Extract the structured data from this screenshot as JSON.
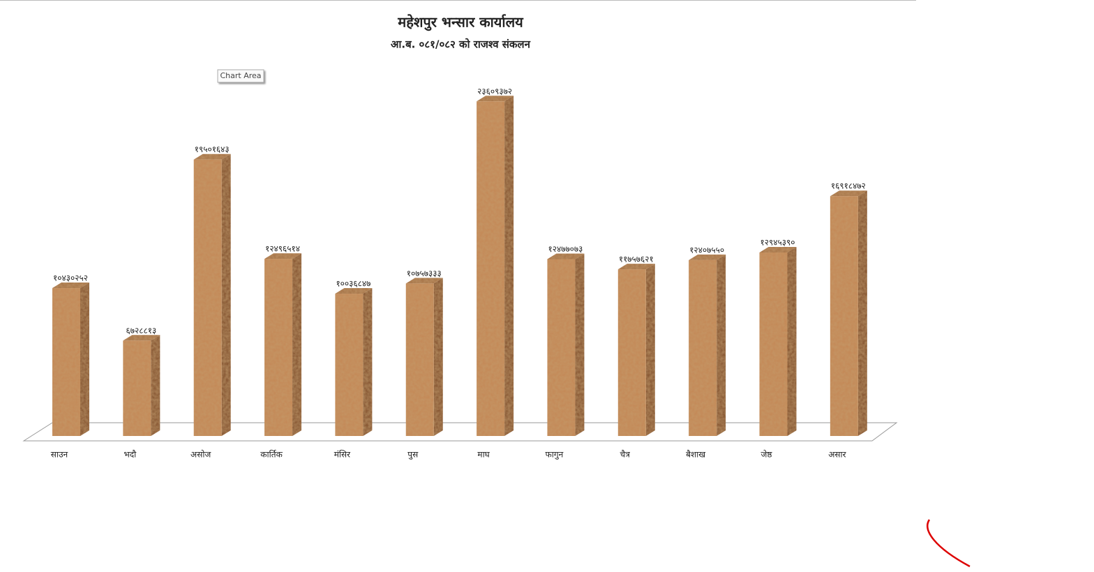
{
  "chart_data": {
    "type": "bar3d",
    "title": "महेशपुर भन्सार कार्यालय",
    "subtitle": "आ.ब. ०८१/०८२ को राजश्व संकलन",
    "tooltip": "Chart Area",
    "categories": [
      "साउन",
      "भदौ",
      "असोज",
      "कार्तिक",
      "मंसिर",
      "पुस",
      "माघ",
      "फागुन",
      "चैत्र",
      "बैशाख",
      "जेष्ठ",
      "असार"
    ],
    "values": [
      10430252,
      6728813,
      19501643,
      12496514,
      10036847,
      10757333,
      23609372,
      12477073,
      11757621,
      12407550,
      12945390,
      16918472
    ],
    "value_labels": [
      "१०४३०२५२",
      "६७२८८१३",
      "१९५०१६४३",
      "१२४९६५१४",
      "१००३६८४७",
      "१०७५७३३३",
      "२३६०९३७२",
      "१२४७७०७३",
      "११७५७६२१",
      "१२४०७५५०",
      "१२९४५३९०",
      "१६९१८४७२"
    ],
    "color": "#c48a58",
    "ylim": [
      0,
      25000000
    ]
  }
}
